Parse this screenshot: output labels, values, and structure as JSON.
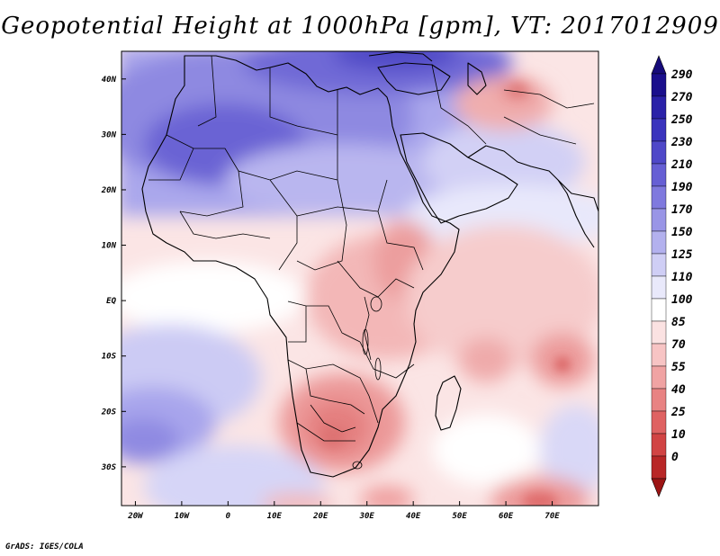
{
  "title": "Geopotential Height at 1000hPa [gpm], VT: 2017012909",
  "credit": "GrADS: IGES/COLA",
  "map": {
    "projection": "latlon",
    "lon_range": [
      -23,
      80
    ],
    "lat_range": [
      -37,
      45
    ],
    "x_ticks": [
      {
        "lon": -20,
        "label": "20W"
      },
      {
        "lon": -10,
        "label": "10W"
      },
      {
        "lon": 0,
        "label": "0"
      },
      {
        "lon": 10,
        "label": "10E"
      },
      {
        "lon": 20,
        "label": "20E"
      },
      {
        "lon": 30,
        "label": "30E"
      },
      {
        "lon": 40,
        "label": "40E"
      },
      {
        "lon": 50,
        "label": "50E"
      },
      {
        "lon": 60,
        "label": "60E"
      },
      {
        "lon": 70,
        "label": "70E"
      }
    ],
    "y_ticks": [
      {
        "lat": 40,
        "label": "40N"
      },
      {
        "lat": 30,
        "label": "30N"
      },
      {
        "lat": 20,
        "label": "20N"
      },
      {
        "lat": 10,
        "label": "10N"
      },
      {
        "lat": 0,
        "label": "EQ"
      },
      {
        "lat": -10,
        "label": "10S"
      },
      {
        "lat": -20,
        "label": "20S"
      },
      {
        "lat": -30,
        "label": "30S"
      }
    ],
    "features": [
      {
        "name": "high-pressure-sahara",
        "lon": 0,
        "lat": 30,
        "level": 235
      },
      {
        "name": "high-pressure-mediterranean",
        "lon": 25,
        "lat": 42,
        "level": 240
      },
      {
        "name": "high-pressure-south-atlantic",
        "lon": -18,
        "lat": -25,
        "level": 195
      },
      {
        "name": "low-pressure-iran",
        "lon": 55,
        "lat": 32,
        "level": 95
      },
      {
        "name": "low-pressure-southern-africa",
        "lon": 25,
        "lat": -22,
        "level": 75
      },
      {
        "name": "low-pressure-mozambique-channel",
        "lon": 40,
        "lat": -5,
        "level": 82
      },
      {
        "name": "low-pressure-indian-ocean",
        "lon": 70,
        "lat": -10,
        "level": 60
      },
      {
        "name": "low-pressure-south-mozambique",
        "lon": 63,
        "lat": -35,
        "level": 55
      }
    ]
  },
  "colorbar": {
    "levels": [
      {
        "label": "290",
        "color": "#1a0f8c"
      },
      {
        "label": "270",
        "color": "#2a21a8"
      },
      {
        "label": "250",
        "color": "#3a33bd"
      },
      {
        "label": "230",
        "color": "#4f48c8"
      },
      {
        "label": "210",
        "color": "#665fd4"
      },
      {
        "label": "190",
        "color": "#7f79de"
      },
      {
        "label": "170",
        "color": "#9995e6"
      },
      {
        "label": "150",
        "color": "#b3b1ee"
      },
      {
        "label": "125",
        "color": "#cfcef5"
      },
      {
        "label": "110",
        "color": "#e9e9fb"
      },
      {
        "label": "100",
        "color": "#ffffff"
      },
      {
        "label": "85",
        "color": "#fbe2e2"
      },
      {
        "label": "70",
        "color": "#f7c4c4"
      },
      {
        "label": "55",
        "color": "#f0a3a3"
      },
      {
        "label": "40",
        "color": "#e88383"
      },
      {
        "label": "25",
        "color": "#df6262"
      },
      {
        "label": "10",
        "color": "#d14444"
      },
      {
        "label": "0",
        "color": "#b82727"
      }
    ],
    "top_color": "#160b7a",
    "bottom_color": "#9c1515"
  }
}
